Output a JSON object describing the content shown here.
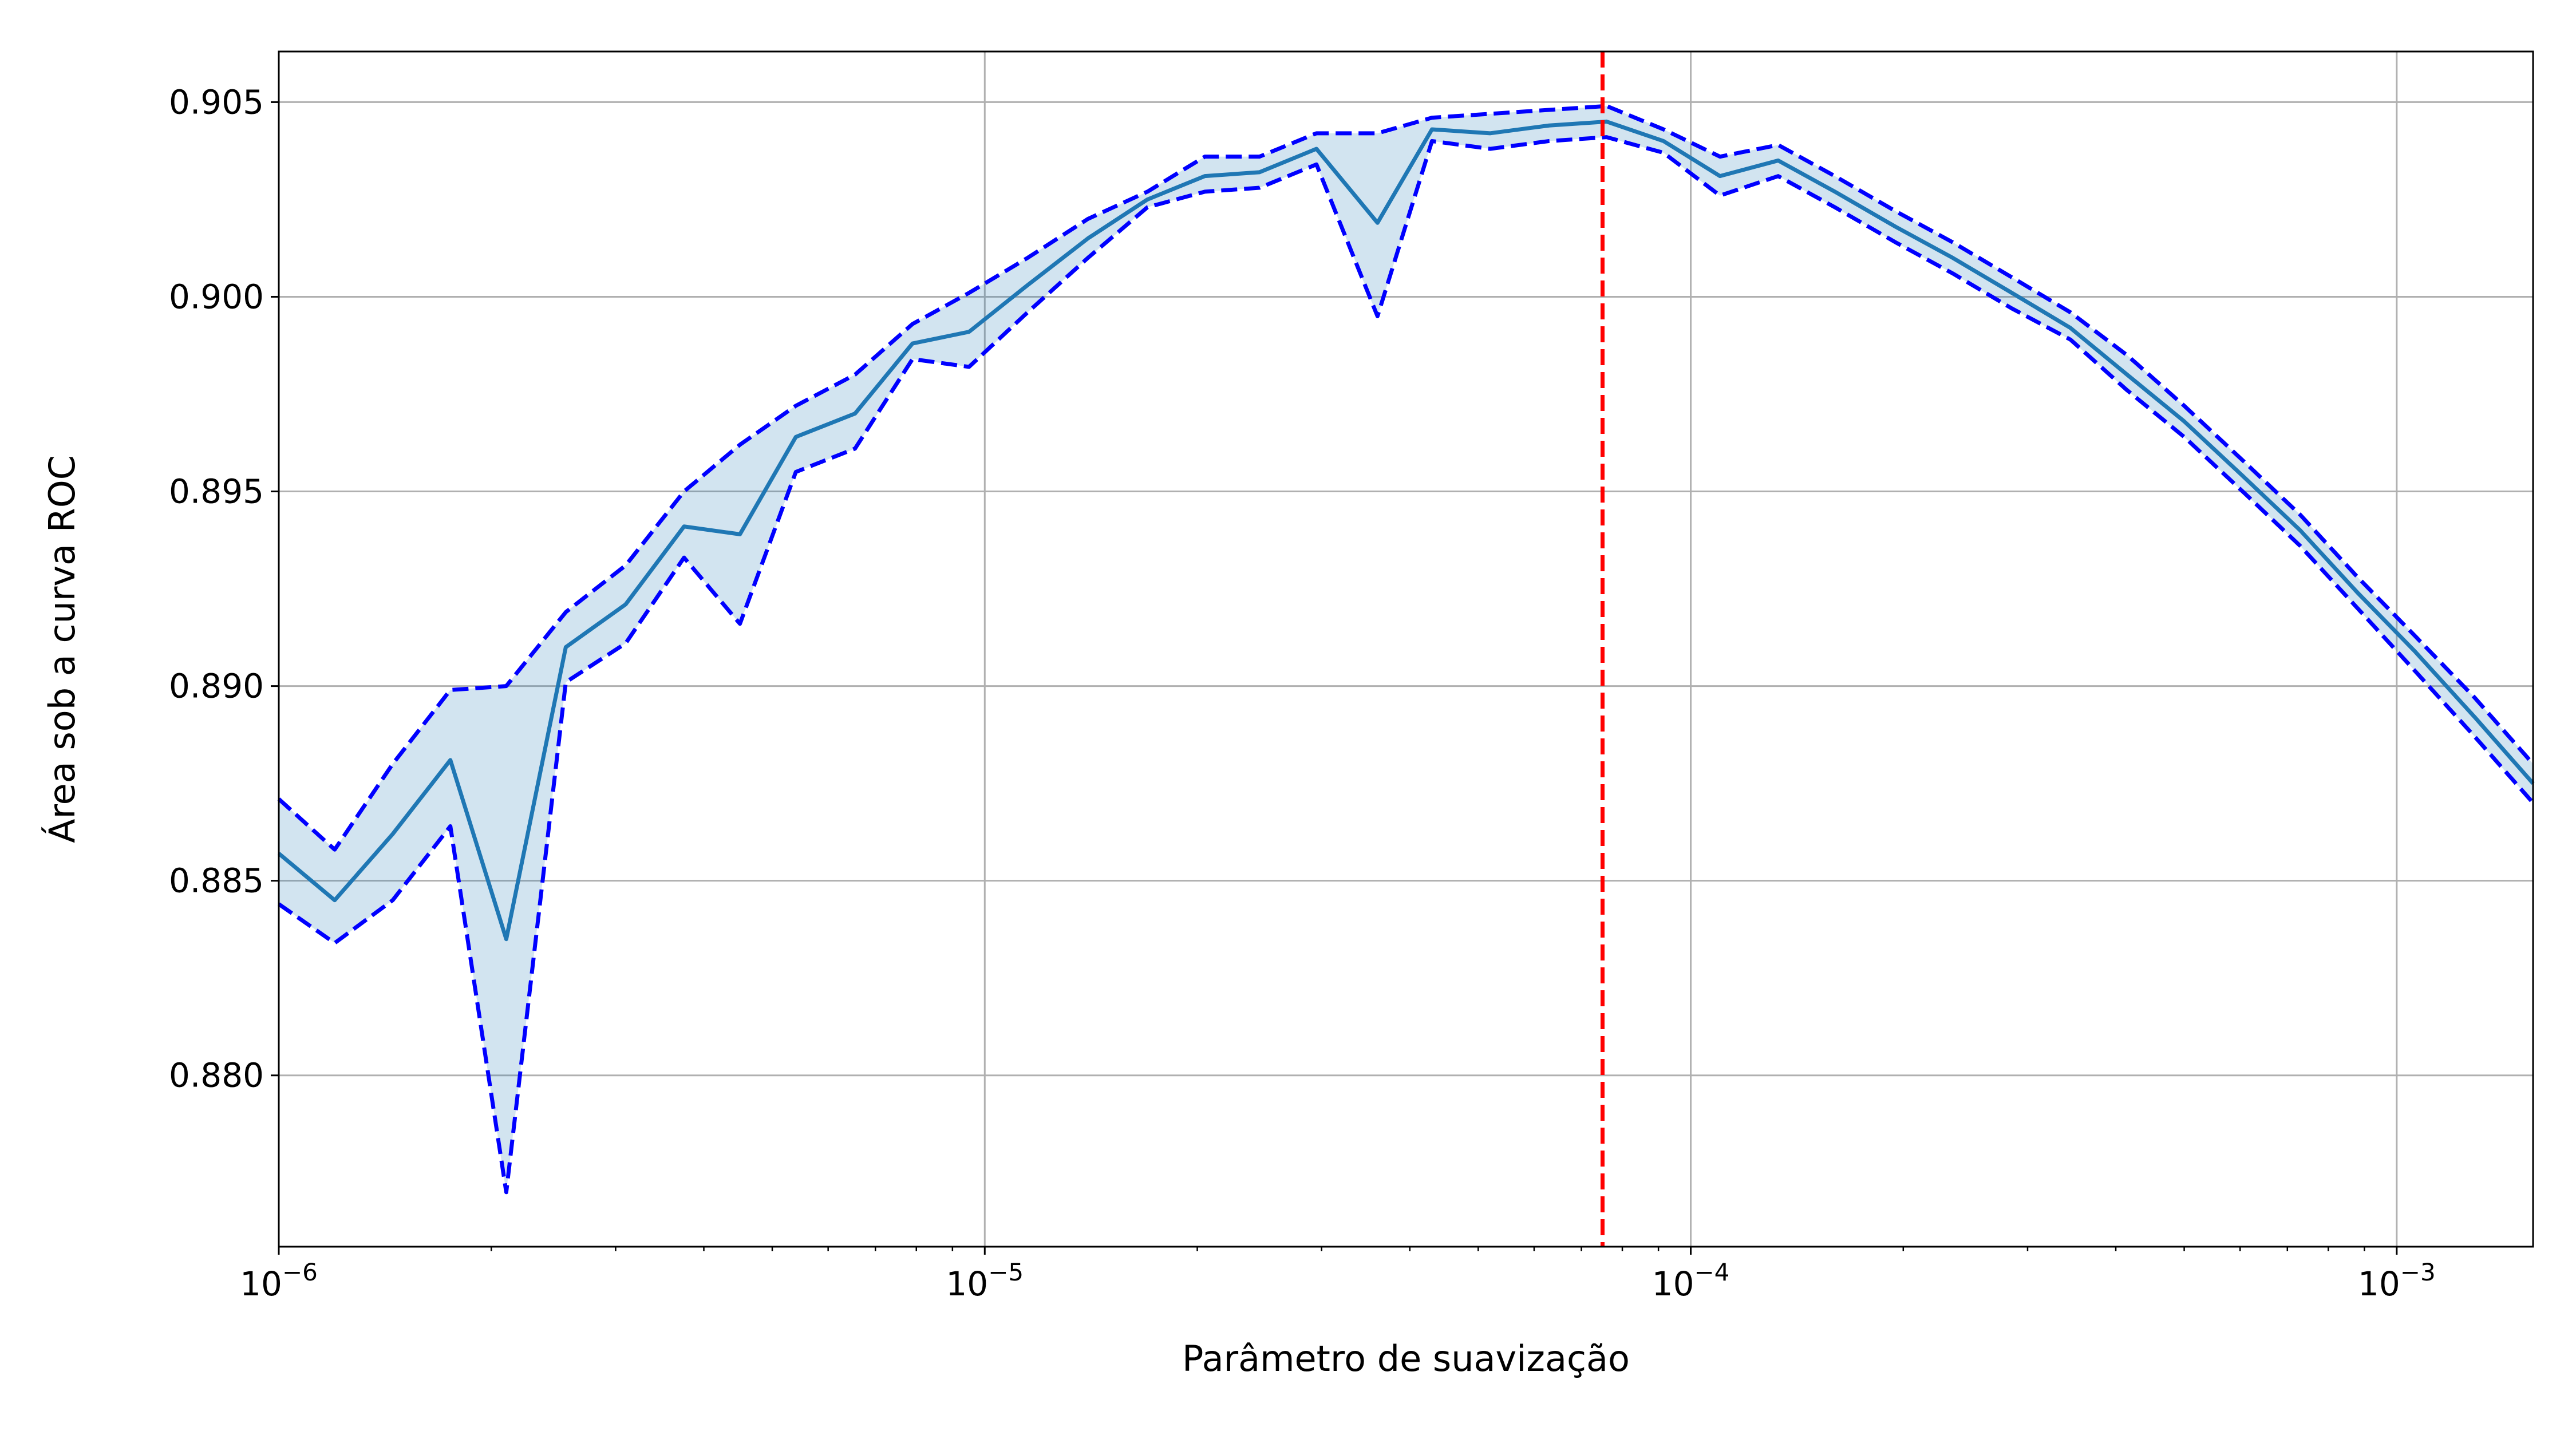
{
  "chart_data": {
    "type": "line",
    "title": "",
    "xlabel": "Parâmetro de suavização",
    "ylabel": "Área sob a curva ROC",
    "x_scale": "log",
    "xlim": [
      1e-06,
      0.00156
    ],
    "ylim": [
      0.8756,
      0.9063
    ],
    "grid": true,
    "x_ticks": [
      {
        "value": 1e-06,
        "base": "10",
        "exp": "−6"
      },
      {
        "value": 1e-05,
        "base": "10",
        "exp": "−5"
      },
      {
        "value": 0.0001,
        "base": "10",
        "exp": "−4"
      },
      {
        "value": 0.001,
        "base": "10",
        "exp": "−3"
      }
    ],
    "y_ticks": [
      0.88,
      0.885,
      0.89,
      0.895,
      0.9,
      0.905
    ],
    "y_tick_labels": [
      "0.880",
      "0.885",
      "0.890",
      "0.895",
      "0.900",
      "0.905"
    ],
    "x": [
      1e-06,
      1.2e-06,
      1.45e-06,
      1.75e-06,
      2.1e-06,
      2.55e-06,
      3.1e-06,
      3.75e-06,
      4.5e-06,
      5.4e-06,
      6.55e-06,
      7.9e-06,
      9.5e-06,
      1.15e-05,
      1.4e-05,
      1.7e-05,
      2.05e-05,
      2.45e-05,
      2.95e-05,
      3.6e-05,
      4.3e-05,
      5.2e-05,
      6.3e-05,
      7.6e-05,
      9.15e-05,
      0.00011,
      0.000133,
      0.00016,
      0.000195,
      0.000235,
      0.000285,
      0.000345,
      0.000415,
      0.0005,
      0.000605,
      0.00073,
      0.00088,
      0.00106,
      0.00129,
      0.00156
    ],
    "series": [
      {
        "name": "",
        "color": "#1f77b4",
        "style": "solid",
        "values": [
          0.8857,
          0.8845,
          0.8862,
          0.8881,
          0.8835,
          0.891,
          0.8921,
          0.8941,
          0.8939,
          0.8964,
          0.897,
          0.8988,
          0.8991,
          0.9003,
          0.9015,
          0.9025,
          0.9031,
          0.9032,
          0.9038,
          0.9019,
          0.9043,
          0.9042,
          0.9044,
          0.9045,
          0.904,
          0.9031,
          0.9035,
          0.9027,
          0.9018,
          0.901,
          0.9001,
          0.8992,
          0.898,
          0.8968,
          0.8954,
          0.894,
          0.8924,
          0.8909,
          0.8892,
          0.8875
        ]
      },
      {
        "name": "",
        "color": "#0000ff",
        "style": "dashed",
        "values": [
          0.8871,
          0.8858,
          0.888,
          0.8899,
          0.89,
          0.8919,
          0.8931,
          0.895,
          0.8962,
          0.8972,
          0.898,
          0.8993,
          0.9001,
          0.901,
          0.902,
          0.9027,
          0.9036,
          0.9036,
          0.9042,
          0.9042,
          0.9046,
          0.9047,
          0.9048,
          0.9049,
          0.9043,
          0.9036,
          0.9039,
          0.9031,
          0.9022,
          0.9014,
          0.9005,
          0.8996,
          0.8985,
          0.8972,
          0.8958,
          0.8944,
          0.8928,
          0.8913,
          0.8897,
          0.888
        ]
      },
      {
        "name": "",
        "color": "#0000ff",
        "style": "dashed",
        "values": [
          0.8844,
          0.8834,
          0.8845,
          0.8864,
          0.877,
          0.8901,
          0.8911,
          0.8933,
          0.8916,
          0.8955,
          0.8961,
          0.8984,
          0.8982,
          0.8996,
          0.901,
          0.9023,
          0.9027,
          0.9028,
          0.9034,
          0.8995,
          0.904,
          0.9038,
          0.904,
          0.9041,
          0.9037,
          0.9026,
          0.9031,
          0.9023,
          0.9014,
          0.9006,
          0.8997,
          0.8989,
          0.8976,
          0.8964,
          0.895,
          0.8936,
          0.892,
          0.8904,
          0.8887,
          0.887
        ]
      }
    ],
    "band": {
      "color": "#1f77b4",
      "opacity": 0.2
    },
    "vline": {
      "x": 7.5e-05,
      "color": "#ff0000",
      "style": "dashed"
    }
  }
}
